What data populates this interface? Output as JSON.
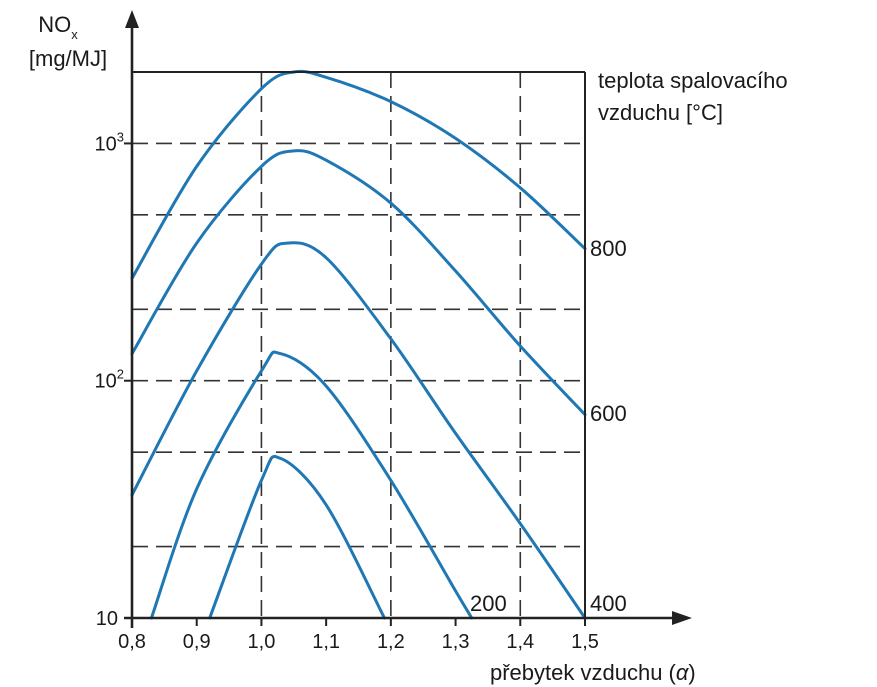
{
  "chart_data": {
    "type": "line",
    "y_axis": {
      "label_line1": "NO",
      "label_sub": "x",
      "label_line2": "[mg/MJ]",
      "scale": "log",
      "ylim": [
        10,
        2000
      ],
      "ticks": [
        {
          "value": 10,
          "base": "10",
          "exp": ""
        },
        {
          "value": 100,
          "base": "10",
          "exp": "2"
        },
        {
          "value": 1000,
          "base": "10",
          "exp": "3"
        }
      ]
    },
    "x_axis": {
      "label": "přebytek vzduchu (",
      "label_symbol": "α",
      "label_end": ")",
      "xlim": [
        0.8,
        1.5
      ],
      "ticks": [
        "0,8",
        "0,9",
        "1,0",
        "1,1",
        "1,2",
        "1,3",
        "1,4",
        "1,5"
      ]
    },
    "grid": true,
    "legend_title_line1": "teplota spalovacího",
    "legend_title_line2": "vzduchu [°C]",
    "line_color": "#1f78b4",
    "series": [
      {
        "name": "800",
        "x": [
          0.8,
          0.9,
          1.0,
          1.05,
          1.1,
          1.2,
          1.3,
          1.4,
          1.5
        ],
        "y": [
          270,
          800,
          1700,
          2000,
          1900,
          1500,
          1050,
          650,
          360
        ]
      },
      {
        "name": "600",
        "x": [
          0.8,
          0.9,
          1.0,
          1.05,
          1.1,
          1.2,
          1.3,
          1.4,
          1.5
        ],
        "y": [
          130,
          380,
          800,
          930,
          850,
          560,
          290,
          140,
          72
        ]
      },
      {
        "name": "",
        "x": [
          0.8,
          0.9,
          1.0,
          1.04,
          1.1,
          1.2,
          1.3,
          1.4,
          1.5
        ],
        "y": [
          33,
          110,
          310,
          380,
          330,
          150,
          60,
          25,
          10
        ]
      },
      {
        "name": "200",
        "x": [
          0.83,
          0.9,
          1.0,
          1.03,
          1.1,
          1.2,
          1.3,
          1.325
        ],
        "y": [
          10,
          35,
          110,
          130,
          95,
          38,
          13,
          10
        ]
      },
      {
        "name": "400",
        "x": [
          0.92,
          1.0,
          1.03,
          1.1,
          1.19
        ],
        "y": [
          10,
          38,
          47,
          30,
          10
        ]
      }
    ]
  }
}
